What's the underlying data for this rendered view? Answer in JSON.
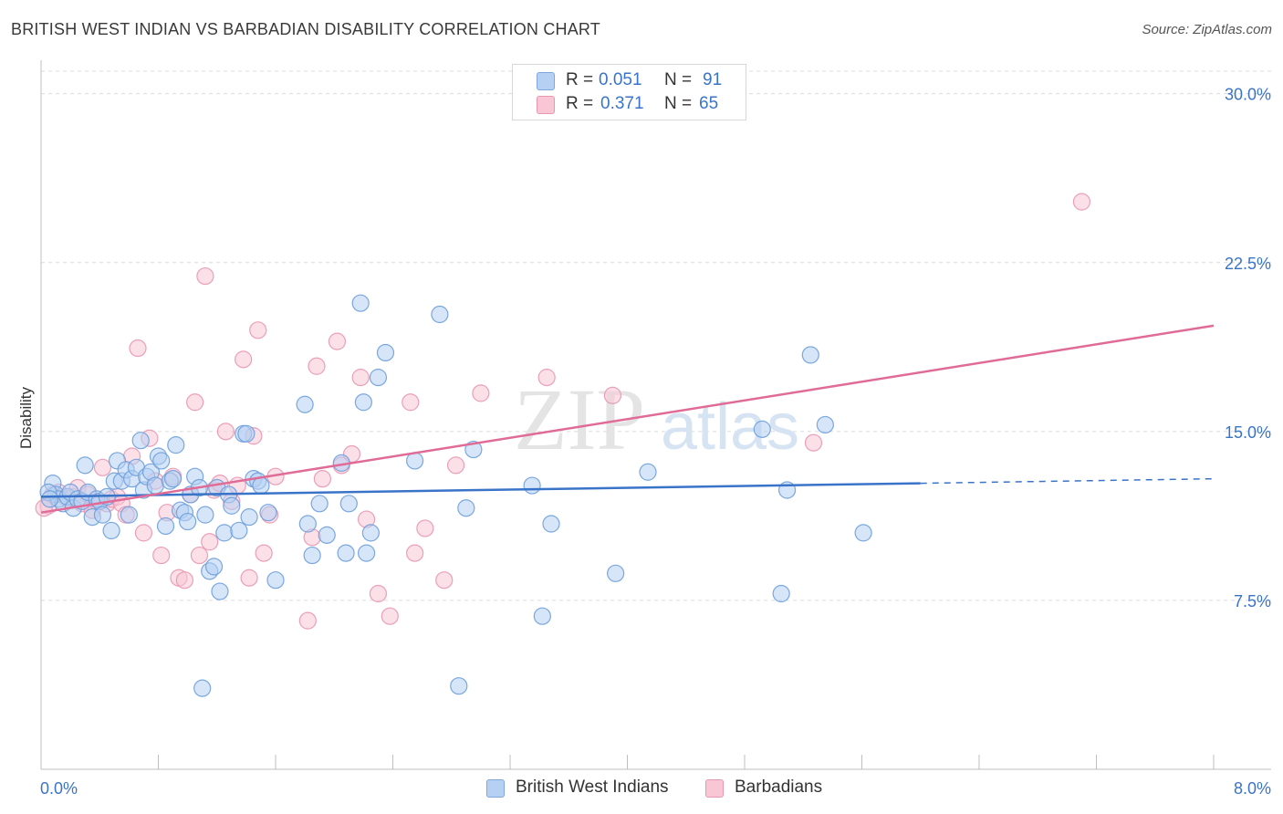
{
  "header": {
    "title": "BRITISH WEST INDIAN VS BARBADIAN DISABILITY CORRELATION CHART",
    "source": "Source: ZipAtlas.com"
  },
  "watermark": {
    "zip": "ZIP",
    "atlas": "atlas"
  },
  "legend_top": {
    "rows": [
      {
        "r_label": "R =",
        "r_value": "0.051",
        "n_label": "N =",
        "n_value": "91"
      },
      {
        "r_label": "R =",
        "r_value": "0.371",
        "n_label": "N =",
        "n_value": "65"
      }
    ]
  },
  "legend_bottom": {
    "items": [
      "British West Indians",
      "Barbadians"
    ]
  },
  "colors": {
    "blue_fill": "#b5d0f2",
    "blue_stroke": "#6d9edb",
    "blue_line": "#3a74c8",
    "pink_fill": "#f8c6d5",
    "pink_stroke": "#e996b1",
    "pink_line": "#e06b97",
    "tick_label": "#3a74c8",
    "grid": "#dcdcdc"
  },
  "chart_data": {
    "type": "scatter",
    "title": "BRITISH WEST INDIAN VS BARBADIAN DISABILITY CORRELATION CHART",
    "xlabel": "",
    "ylabel": "Disability",
    "xlim": [
      0,
      8
    ],
    "ylim": [
      0,
      31
    ],
    "x_tick_labels": [
      "0.0%",
      "8.0%"
    ],
    "y_ticks": [
      7.5,
      15.0,
      22.5,
      30.0
    ],
    "y_tick_labels": [
      "7.5%",
      "15.0%",
      "22.5%",
      "30.0%"
    ],
    "grid": "horizontal dashed",
    "series": [
      {
        "name": "British West Indians",
        "stats": {
          "R": 0.051,
          "N": 91
        },
        "trend": {
          "x": [
            0.0,
            6.0
          ],
          "y": [
            12.1,
            12.7
          ],
          "dashed_to_x": 8.0,
          "dashed_y": 12.9
        },
        "points": [
          [
            0.08,
            12.7
          ],
          [
            0.1,
            12.2
          ],
          [
            0.12,
            12.0
          ],
          [
            0.15,
            11.8
          ],
          [
            0.18,
            12.1
          ],
          [
            0.2,
            12.3
          ],
          [
            0.22,
            11.6
          ],
          [
            0.25,
            12.0
          ],
          [
            0.28,
            11.9
          ],
          [
            0.3,
            13.5
          ],
          [
            0.32,
            12.3
          ],
          [
            0.35,
            11.2
          ],
          [
            0.38,
            12.0
          ],
          [
            0.4,
            11.9
          ],
          [
            0.42,
            11.3
          ],
          [
            0.45,
            12.1
          ],
          [
            0.48,
            10.6
          ],
          [
            0.5,
            12.8
          ],
          [
            0.52,
            13.7
          ],
          [
            0.55,
            12.8
          ],
          [
            0.58,
            13.3
          ],
          [
            0.6,
            11.3
          ],
          [
            0.62,
            12.9
          ],
          [
            0.65,
            13.4
          ],
          [
            0.68,
            14.6
          ],
          [
            0.7,
            12.4
          ],
          [
            0.72,
            13.0
          ],
          [
            0.75,
            13.2
          ],
          [
            0.78,
            12.6
          ],
          [
            0.8,
            13.9
          ],
          [
            0.82,
            13.7
          ],
          [
            0.85,
            10.8
          ],
          [
            0.88,
            12.8
          ],
          [
            0.9,
            12.9
          ],
          [
            0.92,
            14.4
          ],
          [
            0.95,
            11.5
          ],
          [
            0.98,
            11.4
          ],
          [
            1.0,
            11.0
          ],
          [
            1.02,
            12.2
          ],
          [
            1.05,
            13.0
          ],
          [
            1.08,
            12.5
          ],
          [
            1.1,
            3.6
          ],
          [
            1.12,
            11.3
          ],
          [
            1.15,
            8.8
          ],
          [
            1.18,
            9.0
          ],
          [
            1.2,
            12.5
          ],
          [
            1.22,
            7.9
          ],
          [
            1.25,
            10.5
          ],
          [
            1.28,
            12.2
          ],
          [
            1.3,
            11.7
          ],
          [
            1.35,
            10.6
          ],
          [
            1.38,
            14.9
          ],
          [
            1.4,
            14.9
          ],
          [
            1.42,
            11.2
          ],
          [
            1.45,
            12.9
          ],
          [
            1.48,
            12.8
          ],
          [
            1.5,
            12.6
          ],
          [
            1.55,
            11.4
          ],
          [
            1.6,
            8.4
          ],
          [
            1.8,
            16.2
          ],
          [
            1.82,
            10.9
          ],
          [
            1.85,
            9.5
          ],
          [
            1.9,
            11.8
          ],
          [
            1.95,
            10.4
          ],
          [
            2.05,
            13.6
          ],
          [
            2.08,
            9.6
          ],
          [
            2.1,
            11.8
          ],
          [
            2.18,
            20.7
          ],
          [
            2.2,
            16.3
          ],
          [
            2.22,
            9.6
          ],
          [
            2.25,
            10.5
          ],
          [
            2.3,
            17.4
          ],
          [
            2.35,
            18.5
          ],
          [
            2.55,
            13.7
          ],
          [
            2.72,
            20.2
          ],
          [
            2.85,
            3.7
          ],
          [
            2.9,
            11.6
          ],
          [
            2.95,
            14.2
          ],
          [
            3.35,
            12.6
          ],
          [
            3.42,
            6.8
          ],
          [
            3.48,
            10.9
          ],
          [
            3.92,
            8.7
          ],
          [
            4.14,
            13.2
          ],
          [
            4.92,
            15.1
          ],
          [
            5.05,
            7.8
          ],
          [
            5.09,
            12.4
          ],
          [
            5.25,
            18.4
          ],
          [
            5.35,
            15.3
          ],
          [
            5.61,
            10.5
          ],
          [
            0.05,
            12.3
          ],
          [
            0.06,
            12.0
          ]
        ]
      },
      {
        "name": "Barbadians",
        "stats": {
          "R": 0.371,
          "N": 65
        },
        "trend": {
          "x": [
            0.0,
            8.0
          ],
          "y": [
            11.4,
            19.7
          ]
        },
        "points": [
          [
            0.05,
            11.7
          ],
          [
            0.08,
            12.2
          ],
          [
            0.12,
            12.3
          ],
          [
            0.18,
            12.0
          ],
          [
            0.22,
            12.1
          ],
          [
            0.25,
            12.5
          ],
          [
            0.28,
            11.8
          ],
          [
            0.32,
            12.2
          ],
          [
            0.35,
            11.5
          ],
          [
            0.38,
            11.9
          ],
          [
            0.42,
            13.4
          ],
          [
            0.45,
            11.8
          ],
          [
            0.48,
            12.0
          ],
          [
            0.52,
            12.1
          ],
          [
            0.55,
            11.8
          ],
          [
            0.58,
            11.3
          ],
          [
            0.62,
            13.9
          ],
          [
            0.66,
            18.7
          ],
          [
            0.7,
            10.5
          ],
          [
            0.74,
            14.7
          ],
          [
            0.78,
            12.8
          ],
          [
            0.82,
            9.5
          ],
          [
            0.86,
            11.4
          ],
          [
            0.9,
            13.0
          ],
          [
            0.94,
            8.5
          ],
          [
            0.98,
            8.4
          ],
          [
            1.02,
            12.2
          ],
          [
            1.05,
            16.3
          ],
          [
            1.08,
            9.5
          ],
          [
            1.12,
            21.9
          ],
          [
            1.15,
            10.1
          ],
          [
            1.18,
            12.4
          ],
          [
            1.22,
            12.7
          ],
          [
            1.26,
            15.0
          ],
          [
            1.3,
            11.9
          ],
          [
            1.34,
            12.6
          ],
          [
            1.38,
            18.2
          ],
          [
            1.42,
            8.5
          ],
          [
            1.45,
            14.8
          ],
          [
            1.48,
            19.5
          ],
          [
            1.52,
            9.6
          ],
          [
            1.56,
            11.3
          ],
          [
            1.6,
            13.0
          ],
          [
            1.82,
            6.6
          ],
          [
            1.85,
            10.3
          ],
          [
            1.88,
            17.9
          ],
          [
            1.92,
            12.9
          ],
          [
            2.02,
            19.0
          ],
          [
            2.05,
            13.5
          ],
          [
            2.12,
            14.0
          ],
          [
            2.18,
            17.4
          ],
          [
            2.22,
            11.1
          ],
          [
            2.3,
            7.8
          ],
          [
            2.38,
            6.8
          ],
          [
            2.52,
            16.3
          ],
          [
            2.55,
            9.6
          ],
          [
            2.62,
            10.7
          ],
          [
            2.75,
            8.4
          ],
          [
            2.83,
            13.5
          ],
          [
            3.0,
            16.7
          ],
          [
            3.45,
            17.4
          ],
          [
            3.9,
            16.6
          ],
          [
            5.27,
            14.5
          ],
          [
            7.1,
            25.2
          ],
          [
            0.02,
            11.6
          ]
        ]
      }
    ]
  }
}
